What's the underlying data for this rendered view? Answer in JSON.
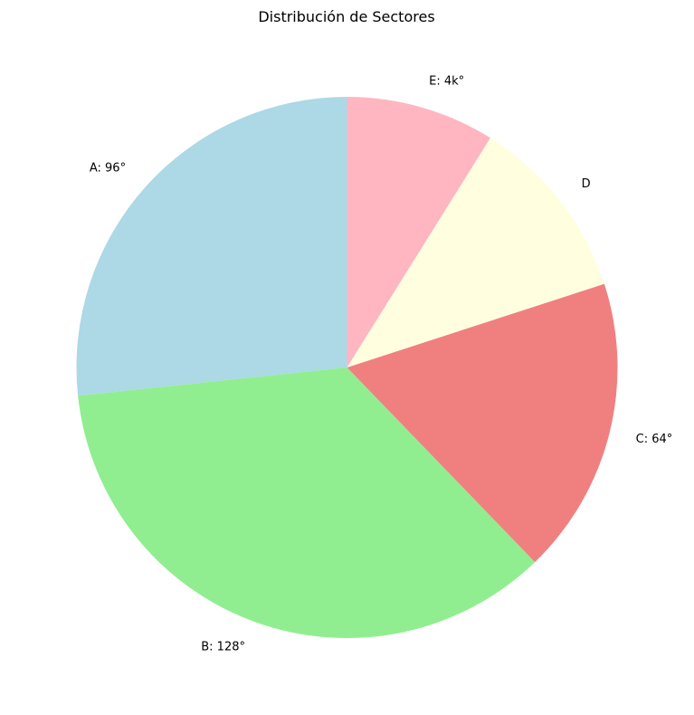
{
  "chart_data": {
    "type": "pie",
    "title": "Distribución de Sectores",
    "start_angle_deg": 90,
    "direction": "counterclockwise",
    "slices": [
      {
        "label": "A: 96°",
        "value": 96,
        "color": "#add8e6"
      },
      {
        "label": "B: 128°",
        "value": 128,
        "color": "#90ee90"
      },
      {
        "label": "C: 64°",
        "value": 64,
        "color": "#f08080"
      },
      {
        "label": "D",
        "value": 40,
        "color": "#ffffe0"
      },
      {
        "label": "E: 4k°",
        "value": 32,
        "color": "#ffb6c1"
      }
    ]
  }
}
